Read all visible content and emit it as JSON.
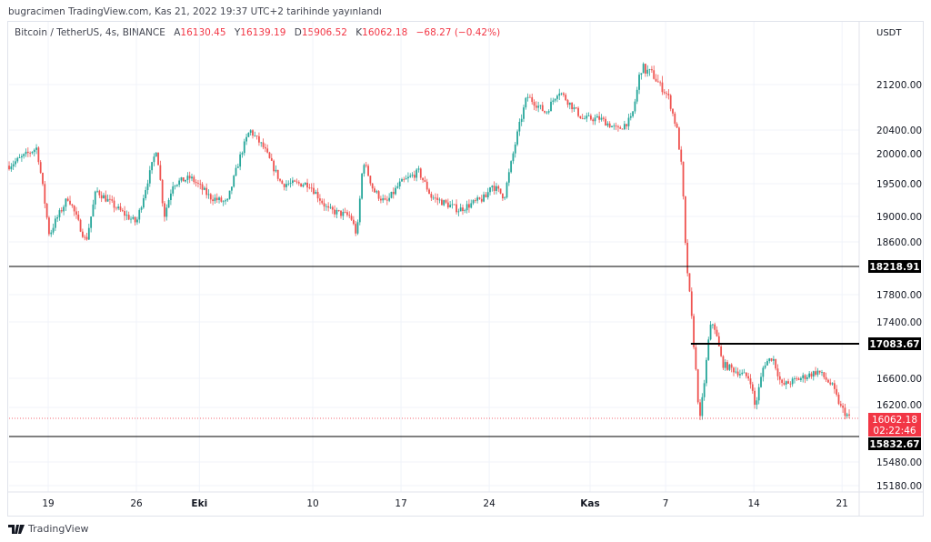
{
  "published": "bugracimen TradingView.com, Kas 21, 2022 19:37 UTC+2 tarihinde yayınlandı",
  "legend": {
    "symbol": "Bitcoin / TetherUS, 4s, BINANCE",
    "open_label": "A",
    "open": "16130.45",
    "high_label": "Y",
    "high": "16139.19",
    "low_label": "D",
    "low": "15906.52",
    "close_label": "K",
    "close": "16062.18",
    "change": "−68.27 (−0.42%)"
  },
  "footer": {
    "brand": "TradingView"
  },
  "colors": {
    "up": "#26a69a",
    "down": "#ef5350",
    "grid": "#f0f3fa",
    "line": "#000000"
  },
  "chart_data": {
    "type": "candlestick",
    "currency": "USDT",
    "x_unit": "days since Sep 19, 2022",
    "x_ticks": [
      {
        "label": "19",
        "day": 0
      },
      {
        "label": "26",
        "day": 7
      },
      {
        "label": "Eki",
        "day": 12
      },
      {
        "label": "10",
        "day": 21
      },
      {
        "label": "17",
        "day": 28
      },
      {
        "label": "24",
        "day": 35
      },
      {
        "label": "Kas",
        "day": 43
      },
      {
        "label": "7",
        "day": 49
      },
      {
        "label": "14",
        "day": 56
      },
      {
        "label": "21",
        "day": 63
      }
    ],
    "y_ticks": [
      "21200.00",
      "20400.00",
      "20000.00",
      "19500.00",
      "19000.00",
      "18600.00",
      "17800.00",
      "17400.00",
      "16600.00",
      "16200.00",
      "15480.00",
      "15180.00"
    ],
    "y_scale": [
      [
        21600,
        55
      ],
      [
        21200,
        93
      ],
      [
        20400,
        143
      ],
      [
        20000,
        169
      ],
      [
        19500,
        202
      ],
      [
        19000,
        238
      ],
      [
        18600,
        266
      ],
      [
        18218.91,
        293
      ],
      [
        17800,
        324
      ],
      [
        17400,
        354
      ],
      [
        17083.67,
        378
      ],
      [
        16600,
        416
      ],
      [
        16200,
        448
      ],
      [
        16062.18,
        460
      ],
      [
        15832.67,
        480
      ],
      [
        15480,
        508
      ],
      [
        15180,
        534
      ],
      [
        15000,
        548
      ]
    ],
    "horizontal_levels": [
      {
        "price": 18218.91,
        "label": "18218.91",
        "from_day": -3.1
      },
      {
        "price": 17083.67,
        "label": "17083.67",
        "from_day": 51.0
      },
      {
        "price": 15832.67,
        "label": "15832.67",
        "from_day": -3.1
      }
    ],
    "last_price": {
      "value": "16062.18",
      "countdown": "02:22:46",
      "price": 16062.18
    },
    "close_path": [
      [
        -3.1,
        19800
      ],
      [
        -0.9,
        20100
      ],
      [
        0.1,
        18700
      ],
      [
        0.5,
        18900
      ],
      [
        1.6,
        19300
      ],
      [
        3.0,
        18600
      ],
      [
        3.8,
        19400
      ],
      [
        5.6,
        19100
      ],
      [
        7.0,
        18900
      ],
      [
        8.1,
        19700
      ],
      [
        8.6,
        20100
      ],
      [
        9.2,
        19000
      ],
      [
        9.9,
        19500
      ],
      [
        11.3,
        19600
      ],
      [
        12.8,
        19300
      ],
      [
        14.2,
        19200
      ],
      [
        15.3,
        20000
      ],
      [
        16.0,
        20400
      ],
      [
        17.1,
        20100
      ],
      [
        18.5,
        19500
      ],
      [
        20.7,
        19500
      ],
      [
        22.2,
        19100
      ],
      [
        24.0,
        19000
      ],
      [
        24.5,
        18700
      ],
      [
        25.0,
        19900
      ],
      [
        25.8,
        19400
      ],
      [
        26.8,
        19200
      ],
      [
        27.9,
        19500
      ],
      [
        29.4,
        19700
      ],
      [
        30.4,
        19300
      ],
      [
        31.5,
        19200
      ],
      [
        32.6,
        19100
      ],
      [
        33.7,
        19200
      ],
      [
        34.8,
        19300
      ],
      [
        35.1,
        19500
      ],
      [
        36.2,
        19300
      ],
      [
        36.6,
        19700
      ],
      [
        37.3,
        20400
      ],
      [
        38.0,
        21000
      ],
      [
        39.5,
        20700
      ],
      [
        40.5,
        21100
      ],
      [
        42.4,
        20600
      ],
      [
        43.8,
        20600
      ],
      [
        45.2,
        20400
      ],
      [
        46.3,
        20600
      ],
      [
        47.0,
        21400
      ],
      [
        48.1,
        21300
      ],
      [
        49.2,
        21000
      ],
      [
        49.9,
        20400
      ],
      [
        50.3,
        19700
      ],
      [
        50.6,
        18400
      ],
      [
        51.0,
        17600
      ],
      [
        51.4,
        16700
      ],
      [
        51.7,
        16000
      ],
      [
        52.1,
        16600
      ],
      [
        52.5,
        17300
      ],
      [
        52.8,
        17400
      ],
      [
        53.5,
        16800
      ],
      [
        54.6,
        16700
      ],
      [
        55.7,
        16600
      ],
      [
        56.1,
        16200
      ],
      [
        56.8,
        16800
      ],
      [
        57.5,
        16900
      ],
      [
        58.2,
        16500
      ],
      [
        59.7,
        16600
      ],
      [
        61.1,
        16700
      ],
      [
        62.2,
        16500
      ],
      [
        62.9,
        16200
      ],
      [
        63.6,
        16062
      ]
    ]
  }
}
